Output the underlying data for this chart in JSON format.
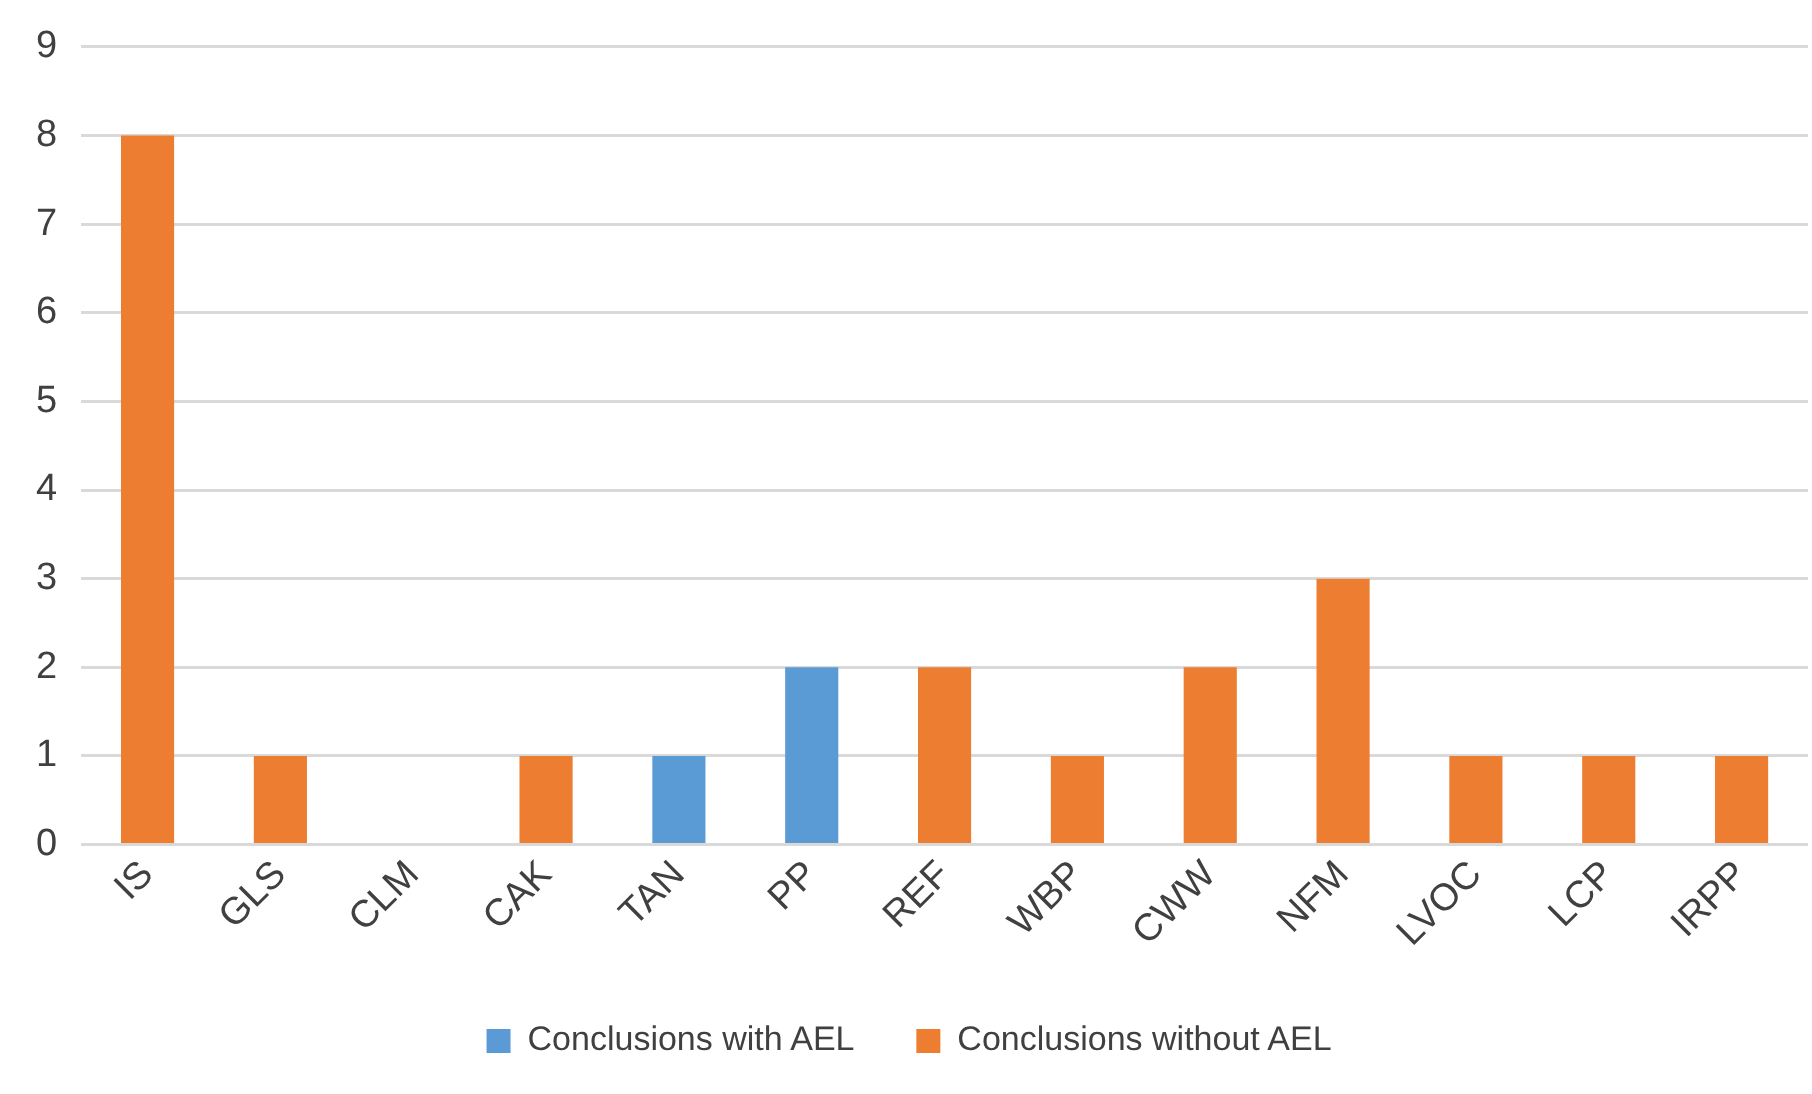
{
  "chart_data": {
    "type": "bar",
    "categories": [
      "IS",
      "GLS",
      "CLM",
      "CAK",
      "TAN",
      "PP",
      "REF",
      "WBP",
      "CWW",
      "NFM",
      "LVOC",
      "LCP",
      "IRPP"
    ],
    "series": [
      {
        "name": "Conclusions with AEL",
        "color": "#5b9bd5",
        "values": [
          null,
          null,
          null,
          null,
          1,
          2,
          null,
          null,
          null,
          null,
          null,
          null,
          null
        ]
      },
      {
        "name": "Conclusions without AEL",
        "color": "#ed7d31",
        "values": [
          8,
          1,
          null,
          1,
          null,
          null,
          2,
          1,
          2,
          3,
          1,
          1,
          1
        ]
      }
    ],
    "stacked": true,
    "ylim": [
      0,
      9
    ],
    "yticks": [
      0,
      1,
      2,
      3,
      4,
      5,
      6,
      7,
      8,
      9
    ],
    "grid": "y",
    "legend": "bottom"
  }
}
